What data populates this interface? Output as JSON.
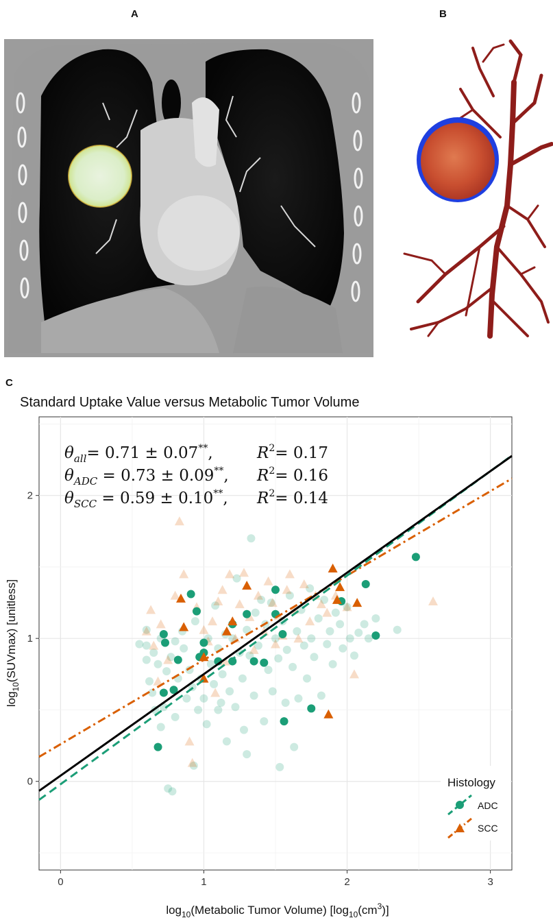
{
  "panels": {
    "a_label": "A",
    "b_label": "B",
    "c_label": "C"
  },
  "chart_data": {
    "type": "scatter",
    "title": "Standard Uptake Value versus Metabolic Tumor Volume",
    "xlabel_main": "log",
    "xlabel_sub": "10",
    "xlabel_mid": "(Metabolic Tumor Volume) [log",
    "xlabel_sub2": "10",
    "xlabel_mid2": "(cm",
    "xlabel_sup": "3",
    "xlabel_end": ")]",
    "ylabel_main": "log",
    "ylabel_sub": "10",
    "ylabel_end": "(SUVmax) [unitless]",
    "xlim": [
      -0.15,
      3.15
    ],
    "ylim": [
      -0.62,
      2.55
    ],
    "xticks": [
      0,
      1,
      2,
      3
    ],
    "yticks": [
      0,
      1,
      2
    ],
    "grid": true,
    "legend_position": "bottom-right",
    "legend_title": "Histology",
    "annotations": [
      {
        "theta": "θ",
        "sub": "all",
        "text": "= 0.71 ± 0.07",
        "sup": "**",
        "tail": ",",
        "r2": "R",
        "r2sup": "2",
        "r2text": "= 0.17"
      },
      {
        "theta": "θ",
        "sub": "ADC",
        "text": " = 0.73 ± 0.09",
        "sup": "**",
        "tail": ",",
        "r2": "R",
        "r2sup": "2",
        "r2text": "= 0.16"
      },
      {
        "theta": "θ",
        "sub": "SCC",
        "text": " = 0.59 ± 0.10",
        "sup": "**",
        "tail": ",",
        "r2": "R",
        "r2sup": "2",
        "r2text": "= 0.14"
      }
    ],
    "fits": [
      {
        "group": "all",
        "slope": 0.71,
        "intercept": 0.04,
        "color": "#000000",
        "dash": "none"
      },
      {
        "group": "ADC",
        "slope": 0.73,
        "intercept": -0.02,
        "color": "#1b9e77",
        "dash": "12,7"
      },
      {
        "group": "SCC",
        "slope": 0.59,
        "intercept": 0.26,
        "color": "#d95f02",
        "dash": "12,5,3,5"
      }
    ],
    "series": [
      {
        "name": "ADC",
        "color": "#1b9e77",
        "marker": "circle",
        "highlighted": [
          [
            0.68,
            0.24
          ],
          [
            0.72,
            0.62
          ],
          [
            0.72,
            1.03
          ],
          [
            0.73,
            0.97
          ],
          [
            0.79,
            0.64
          ],
          [
            0.82,
            0.85
          ],
          [
            0.91,
            1.31
          ],
          [
            0.95,
            1.19
          ],
          [
            0.97,
            0.87
          ],
          [
            1.0,
            0.97
          ],
          [
            1.0,
            0.9
          ],
          [
            1.1,
            0.84
          ],
          [
            1.2,
            0.84
          ],
          [
            1.2,
            1.1
          ],
          [
            1.3,
            1.17
          ],
          [
            1.35,
            0.84
          ],
          [
            1.42,
            0.83
          ],
          [
            1.5,
            1.17
          ],
          [
            1.5,
            1.34
          ],
          [
            1.55,
            1.03
          ],
          [
            1.56,
            0.42
          ],
          [
            1.75,
            0.51
          ],
          [
            1.96,
            1.26
          ],
          [
            2.13,
            1.38
          ],
          [
            2.2,
            1.02
          ],
          [
            2.48,
            1.57
          ]
        ],
        "faded": [
          [
            0.6,
            0.95
          ],
          [
            0.6,
            1.06
          ],
          [
            0.6,
            0.85
          ],
          [
            0.62,
            0.7
          ],
          [
            0.65,
            0.9
          ],
          [
            0.68,
            0.82
          ],
          [
            0.7,
            1.0
          ],
          [
            0.72,
            0.52
          ],
          [
            0.74,
            0.77
          ],
          [
            0.75,
            -0.05
          ],
          [
            0.78,
            -0.07
          ],
          [
            0.8,
            0.45
          ],
          [
            0.8,
            0.98
          ],
          [
            0.82,
            0.72
          ],
          [
            0.85,
            1.05
          ],
          [
            0.86,
            0.93
          ],
          [
            0.88,
            0.58
          ],
          [
            0.9,
            0.78
          ],
          [
            0.92,
            0.66
          ],
          [
            0.93,
            0.11
          ],
          [
            0.94,
            1.12
          ],
          [
            0.96,
            0.5
          ],
          [
            0.98,
            0.72
          ],
          [
            1.0,
            0.58
          ],
          [
            1.02,
            0.4
          ],
          [
            1.03,
            1.0
          ],
          [
            1.05,
            0.82
          ],
          [
            1.07,
            0.68
          ],
          [
            1.08,
            1.23
          ],
          [
            1.1,
            0.93
          ],
          [
            1.12,
            0.55
          ],
          [
            1.13,
            0.75
          ],
          [
            1.15,
            1.03
          ],
          [
            1.16,
            0.28
          ],
          [
            1.18,
            0.63
          ],
          [
            1.2,
            1.0
          ],
          [
            1.22,
            0.52
          ],
          [
            1.23,
            1.42
          ],
          [
            1.25,
            0.9
          ],
          [
            1.27,
            0.72
          ],
          [
            1.28,
            0.36
          ],
          [
            1.3,
            1.06
          ],
          [
            1.3,
            0.19
          ],
          [
            1.32,
            0.88
          ],
          [
            1.33,
            1.7
          ],
          [
            1.35,
            0.6
          ],
          [
            1.36,
            1.18
          ],
          [
            1.38,
            0.95
          ],
          [
            1.4,
            1.27
          ],
          [
            1.42,
            0.42
          ],
          [
            1.43,
            1.1
          ],
          [
            1.45,
            0.78
          ],
          [
            1.47,
            1.25
          ],
          [
            1.48,
            0.63
          ],
          [
            1.5,
            1.0
          ],
          [
            1.52,
            0.86
          ],
          [
            1.53,
            0.1
          ],
          [
            1.55,
            1.12
          ],
          [
            1.57,
            0.55
          ],
          [
            1.58,
            0.92
          ],
          [
            1.6,
            1.3
          ],
          [
            1.62,
            0.8
          ],
          [
            1.63,
            0.24
          ],
          [
            1.65,
            1.05
          ],
          [
            1.66,
            0.58
          ],
          [
            1.68,
            1.2
          ],
          [
            1.7,
            0.95
          ],
          [
            1.72,
            0.72
          ],
          [
            1.74,
            1.35
          ],
          [
            1.75,
            1.0
          ],
          [
            1.77,
            0.87
          ],
          [
            1.8,
            1.14
          ],
          [
            1.82,
            0.6
          ],
          [
            1.84,
            1.27
          ],
          [
            1.86,
            0.96
          ],
          [
            1.88,
            1.05
          ],
          [
            1.9,
            0.82
          ],
          [
            1.92,
            1.18
          ],
          [
            1.95,
            1.1
          ],
          [
            1.97,
            0.93
          ],
          [
            2.0,
            1.22
          ],
          [
            2.02,
            1.0
          ],
          [
            2.05,
            0.88
          ],
          [
            2.08,
            1.04
          ],
          [
            2.12,
            1.1
          ],
          [
            2.15,
            1.0
          ],
          [
            2.2,
            1.14
          ],
          [
            2.35,
            1.06
          ],
          [
            0.55,
            0.96
          ],
          [
            0.64,
            0.62
          ],
          [
            0.66,
            0.5
          ],
          [
            0.7,
            0.38
          ],
          [
            0.77,
            0.87
          ],
          [
            1.1,
            0.5
          ]
        ]
      },
      {
        "name": "SCC",
        "color": "#d95f02",
        "marker": "triangle",
        "highlighted": [
          [
            0.84,
            1.28
          ],
          [
            0.86,
            1.08
          ],
          [
            1.0,
            0.72
          ],
          [
            1.0,
            0.87
          ],
          [
            1.16,
            1.05
          ],
          [
            1.2,
            1.12
          ],
          [
            1.3,
            1.37
          ],
          [
            1.87,
            0.47
          ],
          [
            1.9,
            1.49
          ],
          [
            1.95,
            1.36
          ],
          [
            1.93,
            1.27
          ],
          [
            2.07,
            1.25
          ]
        ],
        "faded": [
          [
            0.6,
            1.05
          ],
          [
            0.63,
            1.2
          ],
          [
            0.65,
            0.95
          ],
          [
            0.7,
            1.1
          ],
          [
            0.75,
            0.85
          ],
          [
            0.8,
            1.3
          ],
          [
            0.83,
            1.82
          ],
          [
            0.86,
            1.45
          ],
          [
            0.9,
            0.28
          ],
          [
            0.92,
            0.13
          ],
          [
            0.95,
            1.22
          ],
          [
            1.0,
            1.06
          ],
          [
            1.03,
            0.98
          ],
          [
            1.06,
            1.12
          ],
          [
            1.1,
            1.26
          ],
          [
            1.13,
            1.34
          ],
          [
            1.15,
            0.84
          ],
          [
            1.18,
            1.45
          ],
          [
            1.22,
            1.0
          ],
          [
            1.25,
            1.24
          ],
          [
            1.28,
            1.46
          ],
          [
            1.32,
            1.15
          ],
          [
            1.35,
            0.92
          ],
          [
            1.38,
            1.3
          ],
          [
            1.42,
            1.05
          ],
          [
            1.45,
            1.4
          ],
          [
            1.48,
            1.25
          ],
          [
            1.52,
            1.16
          ],
          [
            1.55,
            1.02
          ],
          [
            1.58,
            1.34
          ],
          [
            1.6,
            1.45
          ],
          [
            1.63,
            1.2
          ],
          [
            1.66,
            1.0
          ],
          [
            1.7,
            1.38
          ],
          [
            1.74,
            1.12
          ],
          [
            1.78,
            1.3
          ],
          [
            1.82,
            1.24
          ],
          [
            1.86,
            1.18
          ],
          [
            1.92,
            1.3
          ],
          [
            2.0,
            1.22
          ],
          [
            2.05,
            0.75
          ],
          [
            2.6,
            1.26
          ],
          [
            0.68,
            0.7
          ],
          [
            1.08,
            0.62
          ],
          [
            1.5,
            0.96
          ]
        ]
      }
    ]
  }
}
